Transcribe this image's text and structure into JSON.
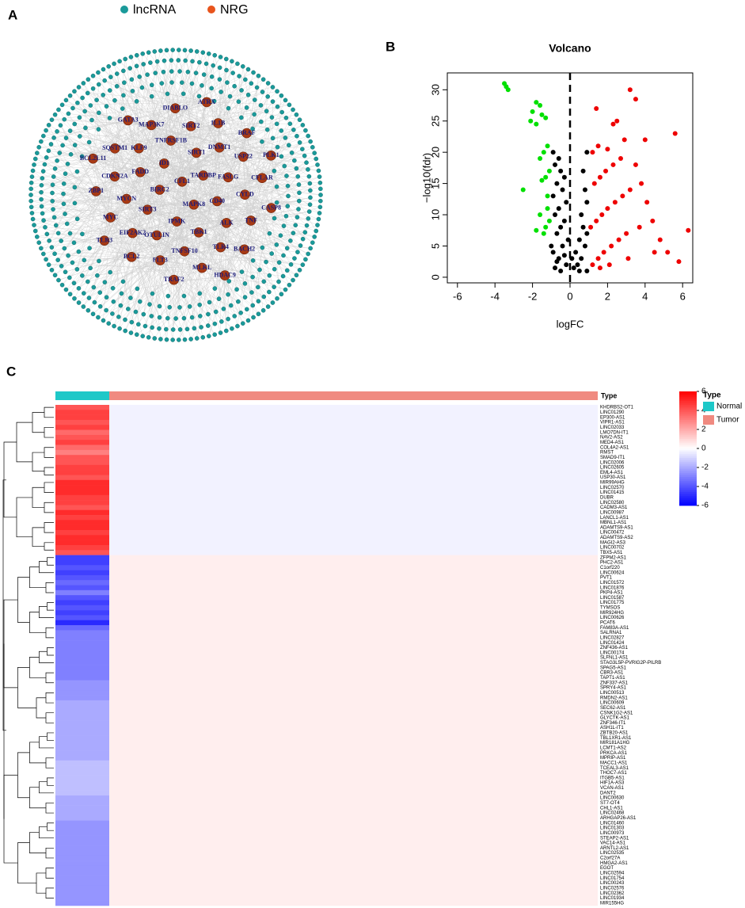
{
  "panels": [
    "A",
    "B",
    "C"
  ],
  "network": {
    "legend": [
      {
        "name": "lncRNA",
        "color": "#1a9a9a"
      },
      {
        "name": "NRG",
        "color": "#e8541c"
      }
    ],
    "nodes": [
      "CFL1",
      "MAPK8",
      "BIRC2",
      "TARDBP",
      "IPMK",
      "ID1",
      "CD40",
      "SIRT3",
      "SIRT1",
      "TBK1",
      "FADD",
      "FASLG",
      "OTULIN",
      "TNFRSF1B",
      "ALK",
      "MYCN",
      "DNMT1",
      "TNFSF10",
      "KLF9",
      "CYLD",
      "EIF2AK2",
      "SIRT2",
      "TLR4",
      "CDKN2A",
      "USP22",
      "FLT3",
      "MAP3K7",
      "TNF",
      "MYC",
      "IL1B",
      "MLKL",
      "SQSTM1",
      "CFLAR",
      "BCL2",
      "DIABLO",
      "BACH2",
      "ZBP1",
      "BRAF",
      "TRAF2",
      "GATA3",
      "CASP8",
      "TLR3",
      "ATRX",
      "HDAC9",
      "BCL2L11",
      "PLK1"
    ]
  },
  "chart_data": [
    {
      "type": "scatter",
      "title": "Volcano",
      "x_label": "logFC",
      "y_label": "−log10(fdr)",
      "xlim": [
        -6.54,
        6.54
      ],
      "ylim": [
        -0.9,
        32.7
      ],
      "xticks": [
        -6,
        -4,
        -2,
        0,
        2,
        4,
        6
      ],
      "yticks": [
        0,
        5,
        10,
        15,
        20,
        25,
        30
      ],
      "vline": 0,
      "series": [
        {
          "color": "#00e000",
          "x": [
            -3.5,
            -3.4,
            -3.3,
            -1.8,
            -1.6,
            -2,
            -1.5,
            -1.3,
            -2.1,
            -1.8,
            -1.2,
            -1.4,
            -1.6,
            -1.1,
            -1.3,
            -1.5,
            -2.5,
            -1.2,
            -1.6,
            -1.1,
            -1.3,
            -1.8,
            -1.4,
            -1.2
          ],
          "values": [
            31,
            30.5,
            30,
            28,
            27.5,
            26.5,
            26,
            25.5,
            25,
            24.5,
            21,
            20,
            19,
            17,
            16,
            15.5,
            14,
            13,
            10,
            9,
            8,
            7.5,
            7,
            11
          ]
        },
        {
          "color": "#000000",
          "x": [
            -0.9,
            -0.6,
            -0.8,
            -0.5,
            -0.3,
            -0.7,
            -0.4,
            -0.9,
            -0.2,
            -0.6,
            -0.8,
            -0.3,
            -0.5,
            -0.7,
            -0.1,
            -0.4,
            -0.9,
            -0.6,
            -0.2,
            -0.8,
            0.2,
            0.4,
            0.6,
            0.3,
            0.8,
            0.5,
            0.9,
            0.7,
            0.6,
            0.9,
            0.8,
            0.7,
            0.9,
            -1.0,
            -0.7,
            0.1,
            -0.3,
            -0.5,
            0.5,
            0.9
          ],
          "values": [
            20,
            19,
            18,
            17,
            16,
            15,
            14,
            13,
            12,
            11,
            10,
            9,
            8,
            7,
            6,
            5,
            4,
            3,
            2,
            1.5,
            1.5,
            2,
            3,
            4,
            5,
            6,
            7,
            8,
            10,
            12,
            14,
            17,
            20,
            5,
            2.5,
            3,
            3.5,
            1,
            1,
            1
          ]
        },
        {
          "color": "#ee0000",
          "x": [
            1.2,
            1.5,
            1.8,
            2.2,
            2.6,
            3,
            1.1,
            1.4,
            1.7,
            2,
            2.4,
            2.8,
            3.2,
            1.3,
            1.6,
            1.9,
            2.3,
            2.7,
            1.2,
            1.5,
            2,
            2.9,
            3.5,
            3.8,
            4.1,
            4.4,
            4.8,
            5.2,
            4,
            2.3,
            2.5,
            3.2,
            3.5,
            1.4,
            5.6,
            5.8,
            6.3,
            3.1,
            2.1,
            1.6,
            4.5,
            3.7
          ],
          "values": [
            2,
            3,
            4,
            5,
            6,
            7,
            8,
            9,
            10,
            11,
            12,
            13,
            14,
            15,
            16,
            17,
            18,
            19,
            20,
            21,
            20.5,
            22,
            18,
            15,
            12,
            9,
            6,
            4,
            22,
            24.5,
            25,
            30,
            28.5,
            27,
            23,
            2.5,
            7.5,
            3,
            2,
            1.5,
            4,
            8
          ]
        }
      ]
    },
    {
      "type": "heatmap",
      "annotation_label": "Type",
      "legend_title": "Type",
      "groups": [
        {
          "name": "Normal",
          "color": "#1ec8c8"
        },
        {
          "name": "Tumor",
          "color": "#f08a80"
        }
      ],
      "zlim": [
        -6,
        6
      ],
      "zticks": [
        -6,
        -4,
        -2,
        0,
        2,
        4,
        6
      ],
      "rows": [
        "KHDRBS2-OT1",
        "LINC01290",
        "EP300-AS1",
        "VIPR1-AS1",
        "LINC02033",
        "LMO7DN-IT1",
        "NAV2-AS2",
        "MED4-AS1",
        "COL4A2-AS1",
        "RMST",
        "SMAD9-IT1",
        "LINC02006",
        "LINC02605",
        "EML4-AS1",
        "USP30-AS1",
        "MIR99AHG",
        "LINC02570",
        "LINC01415",
        "DUBR",
        "LINC02580",
        "CADM3-AS1",
        "LINC00987",
        "LANCL1-AS1",
        "MBNL1-AS1",
        "ADAMTS9-AS1",
        "LINC00472",
        "ADAMTS9-AS2",
        "MAGI2-AS3",
        "LINC00702",
        "TBX5-AS1",
        "ZFPM2-AS1",
        "PHC2-AS1",
        "C1orf220",
        "LINC00624",
        "PVT1",
        "LINC01572",
        "LINC01876",
        "PKP4-AS1",
        "LINC01587",
        "LINC01775",
        "TYMSOS",
        "MIR924HG",
        "LINC00626",
        "PCAT6",
        "FAM83A-AS1",
        "SALRNA1",
        "LINC02827",
        "LINC01424",
        "ZNF436-AS1",
        "LINC00174",
        "SLFNL1-AS1",
        "STAG3L5P-PVRIG2P-PILRB",
        "SPAG5-AS1",
        "CBR3-AS1",
        "TAPT1-AS1",
        "ZNF337-AS1",
        "SPRY4-AS1",
        "LINC00513",
        "RMDN2-AS1",
        "LINC00609",
        "SEC62-AS1",
        "CSNK1G2-AS1",
        "GLYCTK-AS1",
        "ZNF346-IT1",
        "ASH1L-IT1",
        "ZBTB20-AS1",
        "TBL1XR1-AS1",
        "MIR181A1HG",
        "LCMT1-AS2",
        "PRKCA-AS1",
        "MPRIP-AS1",
        "MACC1-AS1",
        "TCEAL3-AS1",
        "THOC7-AS1",
        "ITGB5-AS1",
        "HIF1A-AS3",
        "VCAN-AS1",
        "DANT2",
        "LINC00630",
        "ST7-OT4",
        "CHL1-AS1",
        "LINC02468",
        "ARHGAP26-AS1",
        "LINC01460",
        "LINC01303",
        "LINC00973",
        "STEAP2-AS1",
        "VAC14-AS1",
        "ARNTL2-AS1",
        "LINC02535",
        "C2orf27A",
        "HMGA2-AS1",
        "EGOT",
        "LINC02594",
        "LINC01754",
        "LINC00243",
        "LINC02576",
        "LINC02362",
        "LINC01934",
        "MIR155HG"
      ],
      "values": [
        [
          4,
          -0.3
        ],
        [
          4.5,
          -0.3
        ],
        [
          4.5,
          -0.3
        ],
        [
          4,
          -0.3
        ],
        [
          4.5,
          -0.3
        ],
        [
          3.5,
          -0.3
        ],
        [
          4,
          -0.3
        ],
        [
          4.5,
          -0.3
        ],
        [
          3.5,
          -0.3
        ],
        [
          3,
          -0.3
        ],
        [
          4,
          -0.3
        ],
        [
          4,
          -0.3
        ],
        [
          4.5,
          -0.3
        ],
        [
          4.5,
          -0.3
        ],
        [
          4,
          -0.3
        ],
        [
          5,
          -0.3
        ],
        [
          5,
          -0.3
        ],
        [
          5,
          -0.3
        ],
        [
          4.5,
          -0.3
        ],
        [
          4.5,
          -0.3
        ],
        [
          4,
          -0.3
        ],
        [
          5,
          -0.3
        ],
        [
          4.5,
          -0.3
        ],
        [
          5,
          -0.3
        ],
        [
          5,
          -0.3
        ],
        [
          4.5,
          -0.3
        ],
        [
          5,
          -0.3
        ],
        [
          5,
          -0.3
        ],
        [
          4.5,
          -0.3
        ],
        [
          4,
          -0.3
        ],
        [
          -4.5,
          0.4
        ],
        [
          -4.5,
          0.4
        ],
        [
          -4,
          0.4
        ],
        [
          -4.5,
          0.4
        ],
        [
          -4,
          0.4
        ],
        [
          -3.5,
          0.4
        ],
        [
          -4,
          0.4
        ],
        [
          -3,
          0.4
        ],
        [
          -4,
          0.4
        ],
        [
          -4.5,
          0.4
        ],
        [
          -4,
          0.4
        ],
        [
          -4.5,
          0.4
        ],
        [
          -4,
          0.4
        ],
        [
          -5,
          0.4
        ],
        [
          -3.5,
          0.4
        ],
        [
          -3,
          0.4
        ],
        [
          -3,
          0.4
        ],
        [
          -3,
          0.4
        ],
        [
          -3,
          0.4
        ],
        [
          -3,
          0.4
        ],
        [
          -3,
          0.4
        ],
        [
          -3,
          0.4
        ],
        [
          -3,
          0.4
        ],
        [
          -3,
          0.4
        ],
        [
          -3,
          0.4
        ],
        [
          -2.5,
          0.4
        ],
        [
          -2.5,
          0.4
        ],
        [
          -2.5,
          0.4
        ],
        [
          -2.5,
          0.4
        ],
        [
          -2,
          0.4
        ],
        [
          -2,
          0.4
        ],
        [
          -2,
          0.4
        ],
        [
          -2,
          0.4
        ],
        [
          -2,
          0.4
        ],
        [
          -2,
          0.4
        ],
        [
          -2,
          0.4
        ],
        [
          -2,
          0.4
        ],
        [
          -2,
          0.4
        ],
        [
          -2,
          0.4
        ],
        [
          -2,
          0.4
        ],
        [
          -2,
          0.4
        ],
        [
          -1.5,
          0.4
        ],
        [
          -1.5,
          0.4
        ],
        [
          -1.5,
          0.4
        ],
        [
          -1.5,
          0.4
        ],
        [
          -1.5,
          0.4
        ],
        [
          -1.5,
          0.4
        ],
        [
          -1.5,
          0.4
        ],
        [
          -2,
          0.4
        ],
        [
          -2,
          0.4
        ],
        [
          -2,
          0.4
        ],
        [
          -2,
          0.4
        ],
        [
          -2,
          0.4
        ],
        [
          -2.5,
          0.4
        ],
        [
          -2.5,
          0.4
        ],
        [
          -2.5,
          0.4
        ],
        [
          -2.5,
          0.4
        ],
        [
          -2.5,
          0.4
        ],
        [
          -2.5,
          0.4
        ],
        [
          -2.5,
          0.4
        ],
        [
          -2.5,
          0.4
        ],
        [
          -2.5,
          0.4
        ],
        [
          -2.5,
          0.4
        ],
        [
          -2.5,
          0.4
        ],
        [
          -2.5,
          0.4
        ],
        [
          -2.5,
          0.4
        ],
        [
          -2.5,
          0.4
        ],
        [
          -2.5,
          0.4
        ],
        [
          -2.5,
          0.4
        ],
        [
          -2.5,
          0.4
        ]
      ]
    }
  ]
}
